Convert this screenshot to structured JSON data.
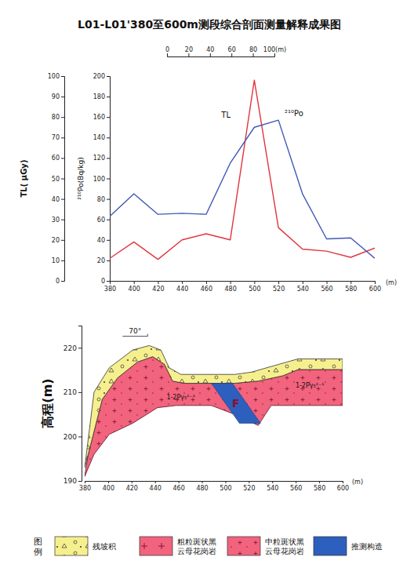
{
  "chart_data": [
    {
      "type": "line",
      "title": "L01-L01'380至600m测段综合剖面测量解释成果图",
      "scale_bar": {
        "ticks": [
          0,
          20,
          40,
          60,
          80,
          {
            "value": 100,
            "label": "100(m)"
          }
        ]
      },
      "x": [
        380,
        400,
        420,
        440,
        460,
        480,
        500,
        520,
        540,
        560,
        580,
        600
      ],
      "xlim": [
        380,
        600
      ],
      "xticks": [
        380,
        400,
        420,
        440,
        460,
        480,
        500,
        520,
        540,
        560,
        580,
        600
      ],
      "x_label": "(m)",
      "y_label": "TL( μGy)",
      "ylim": [
        0,
        100
      ],
      "yticks": [
        0,
        10,
        20,
        30,
        40,
        50,
        60,
        70,
        80,
        90,
        100
      ],
      "y2_label": "²¹⁰Po(Bq/kg)",
      "y2lim": [
        0,
        200
      ],
      "y2ticks": [
        0,
        20,
        40,
        60,
        80,
        100,
        120,
        140,
        160,
        180,
        200
      ],
      "series": [
        {
          "name": "TL",
          "color": "#e2343f",
          "values": [
            11,
            19,
            10.5,
            20,
            23,
            20,
            98,
            26,
            15.5,
            14.5,
            11.5,
            16
          ]
        },
        {
          "name": "²¹⁰Po",
          "color": "#4059b5",
          "axis": "y2",
          "values": [
            63,
            85,
            65,
            66,
            65,
            115,
            150,
            157,
            85,
            41,
            42,
            22
          ]
        }
      ]
    },
    {
      "type": "cross_section",
      "xlim": [
        380,
        600
      ],
      "xticks": [
        380,
        400,
        420,
        440,
        460,
        480,
        500,
        520,
        540,
        560,
        580,
        600
      ],
      "x_label": "(m)",
      "y_label": "高程(m)",
      "ylim": [
        190,
        225
      ],
      "yticks": [
        190,
        200,
        210,
        220
      ],
      "surface": {
        "x": [
          380,
          388,
          401,
          421,
          435,
          445,
          452,
          462,
          508,
          522,
          542,
          562,
          600
        ],
        "y": [
          193,
          210,
          215.5,
          219.5,
          220.5,
          219.5,
          215.5,
          214,
          214,
          214.5,
          216,
          217.5,
          217.5
        ]
      },
      "granite_top": {
        "x": [
          383,
          395,
          408,
          425,
          438,
          448,
          455,
          465,
          508,
          528,
          549,
          562,
          600
        ],
        "y": [
          196,
          208.4,
          213.2,
          216.8,
          218,
          216.3,
          212.5,
          212,
          212,
          212.5,
          213.7,
          215.1,
          215.1
        ]
      },
      "granite_bottom": {
        "x": [
          380,
          388,
          401,
          421,
          442,
          458,
          488,
          508,
          528,
          539,
          600
        ],
        "y": [
          191,
          196,
          200.5,
          203,
          206.5,
          207,
          207,
          205,
          202.5,
          207,
          207
        ]
      },
      "fault": {
        "label": "F",
        "top": [
          488,
          506
        ],
        "top_elevation": 212,
        "bottom": [
          512,
          530
        ],
        "bottom_elevation": 203
      },
      "dip_label": {
        "text": "70°",
        "x": 423,
        "y": 223.3
      },
      "annotations": [
        {
          "text": "1-2Pγ₅²⁻¹",
          "x": 462,
          "y": 208.4
        },
        {
          "text": "1-2Pγ₅²⁻¹",
          "x": 572,
          "y": 211
        }
      ],
      "legend": "bottom",
      "legend_title": "图例",
      "legend_items": [
        {
          "label": "残坡积",
          "color": "#f6ef8e",
          "marker": "circle-triangle"
        },
        {
          "label": "粗粒斑状黑云母花岗岩",
          "color": "#f2637e",
          "marker": "cross-large"
        },
        {
          "label": "中粒斑状黑云母花岗岩",
          "color": "#f2637e",
          "marker": "cross-small"
        },
        {
          "label": "推测构造",
          "color": "#2d5fbf",
          "marker": "none"
        }
      ]
    }
  ]
}
